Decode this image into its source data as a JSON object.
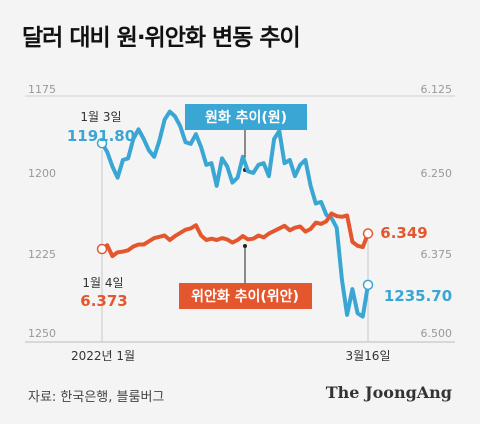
{
  "title": "달러 대비 원·위안화 변동 추이",
  "source": "자료: 한국은행, 블룸버그",
  "brand": "The JoongAng",
  "colors": {
    "krw": "#3aa6d3",
    "cny": "#e4572e",
    "krw_label_bg": "#3aa6d3",
    "cny_label_bg": "#e4572e",
    "axis_text": "#999999",
    "rule": "#cfcfcf",
    "guide": "#c8c8c8"
  },
  "chart_data": {
    "type": "line",
    "x_start_label": "2022년 1월",
    "x_end_label": "3월16일",
    "left_axis": {
      "ticks": [
        "1175",
        "1200",
        "1225",
        "1250"
      ],
      "range": [
        1175,
        1250
      ],
      "inverted": true
    },
    "right_axis": {
      "ticks": [
        "6.125",
        "6.250",
        "6.375",
        "6.500"
      ],
      "range": [
        6.125,
        6.5
      ],
      "inverted": true
    },
    "grid": false,
    "series": [
      {
        "name": "원화 추이(원)",
        "axis": "left",
        "start_label": "1월 3일",
        "start_value": "1191.80",
        "end_value": "1235.70",
        "values": [
          1191.8,
          1194.5,
          1199.0,
          1202.5,
          1197.0,
          1196.5,
          1190.5,
          1187.5,
          1190.5,
          1194.0,
          1196.0,
          1191.0,
          1184.5,
          1182.0,
          1183.5,
          1186.5,
          1191.5,
          1192.0,
          1189.0,
          1193.0,
          1198.5,
          1198.0,
          1205.0,
          1196.5,
          1199.0,
          1204.0,
          1202.5,
          1196.0,
          1200.5,
          1201.0,
          1198.5,
          1198.0,
          1202.0,
          1190.5,
          1188.0,
          1198.0,
          1197.0,
          1202.0,
          1198.5,
          1197.0,
          1205.0,
          1210.5,
          1210.0,
          1214.0,
          1215.0,
          1218.0,
          1234.0,
          1245.0,
          1237.0,
          1244.5,
          1245.5,
          1235.7
        ]
      },
      {
        "name": "위안화 추이(위안)",
        "axis": "right",
        "start_label": "1월 4일",
        "start_value": "6.373",
        "end_value": "6.349",
        "values": [
          6.373,
          6.367,
          6.384,
          6.378,
          6.377,
          6.375,
          6.369,
          6.366,
          6.366,
          6.361,
          6.356,
          6.354,
          6.352,
          6.359,
          6.353,
          6.348,
          6.343,
          6.341,
          6.336,
          6.352,
          6.359,
          6.357,
          6.359,
          6.356,
          6.358,
          6.363,
          6.359,
          6.353,
          6.358,
          6.357,
          6.352,
          6.355,
          6.349,
          6.345,
          6.341,
          6.337,
          6.344,
          6.34,
          6.338,
          6.346,
          6.342,
          6.332,
          6.334,
          6.33,
          6.318,
          6.322,
          6.323,
          6.321,
          6.362,
          6.368,
          6.37,
          6.349
        ]
      }
    ]
  }
}
